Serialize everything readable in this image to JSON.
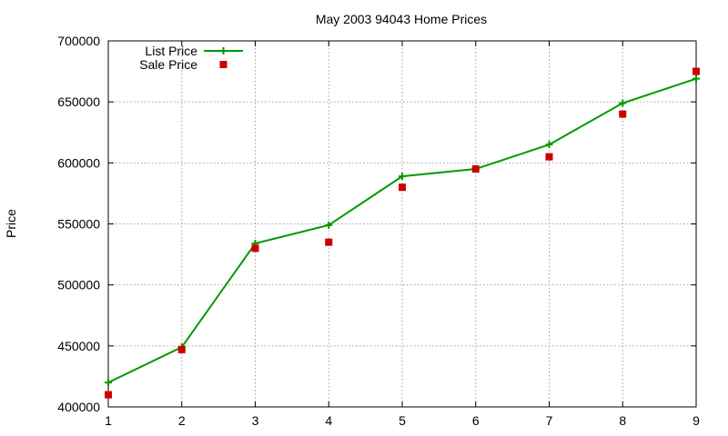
{
  "chart_data": {
    "type": "line",
    "title": "May 2003 94043 Home Prices",
    "xlabel": "",
    "ylabel": "Price",
    "x": [
      1,
      2,
      3,
      4,
      5,
      6,
      7,
      8,
      9
    ],
    "xlim": [
      1,
      9
    ],
    "ylim": [
      400000,
      700000
    ],
    "x_ticks": [
      "1",
      "2",
      "3",
      "4",
      "5",
      "6",
      "7",
      "8",
      "9"
    ],
    "y_ticks": [
      "400000",
      "450000",
      "500000",
      "550000",
      "600000",
      "650000",
      "700000"
    ],
    "grid": true,
    "legend_position": "top-left",
    "series": [
      {
        "name": "List Price",
        "style": "line-with-plus-markers",
        "color": "#009900",
        "values": [
          420000,
          449000,
          534000,
          549000,
          589000,
          595000,
          615000,
          649000,
          669000
        ]
      },
      {
        "name": "Sale Price",
        "style": "square-markers",
        "color": "#cc0000",
        "values": [
          410000,
          447000,
          530000,
          535000,
          580000,
          595000,
          605000,
          640000,
          675000
        ]
      }
    ]
  }
}
